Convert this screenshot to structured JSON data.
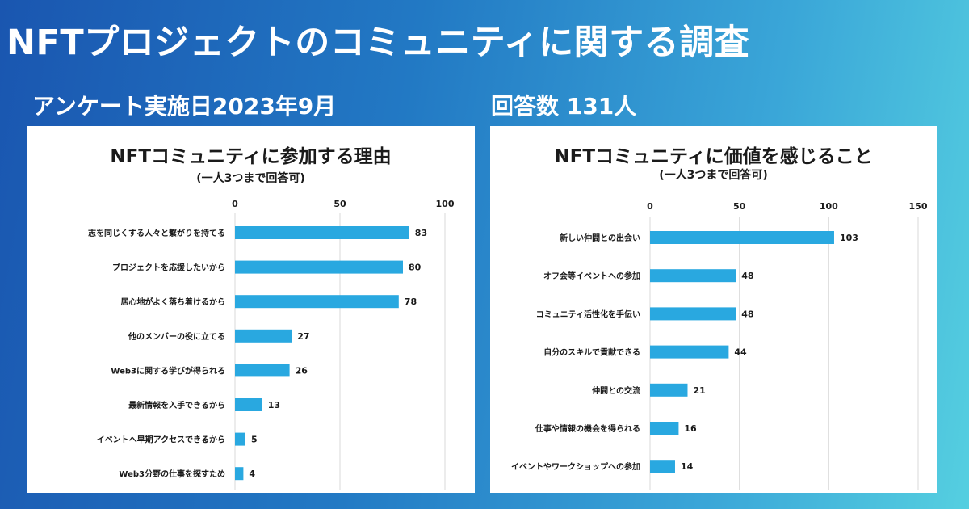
{
  "header": {
    "title": "NFTプロジェクトのコミュニティに関する調査",
    "survey_date": "アンケート実施日2023年9月",
    "respondents": "回答数 131人"
  },
  "colors": {
    "bar": "#29a8e0",
    "grid": "#d9d9d9",
    "text": "#1a1a1a"
  },
  "chart_data": [
    {
      "type": "bar",
      "orientation": "horizontal",
      "title": "NFTコミュニティに参加する理由",
      "note": "(一人3つまで回答可)",
      "xlim": [
        0,
        100
      ],
      "ticks": [
        0,
        50,
        100
      ],
      "categories": [
        "志を同じくする人々と繋がりを持てる",
        "プロジェクトを応援したいから",
        "居心地がよく落ち着けるから",
        "他のメンバーの役に立てる",
        "Web3に関する学びが得られる",
        "最新情報を入手できるから",
        "イベントへ早期アクセスできるから",
        "Web3分野の仕事を探すため"
      ],
      "values": [
        83,
        80,
        78,
        27,
        26,
        13,
        5,
        4
      ]
    },
    {
      "type": "bar",
      "orientation": "horizontal",
      "title": "NFTコミュニティに価値を感じること",
      "note": "(一人3つまで回答可)",
      "xlim": [
        0,
        150
      ],
      "ticks": [
        0,
        50,
        100,
        150
      ],
      "categories": [
        "新しい仲間との出会い",
        "オフ会等イベントへの参加",
        "コミュニティ活性化を手伝い",
        "自分のスキルで貢献できる",
        "仲間との交流",
        "仕事や情報の機会を得られる",
        "イベントやワークショップへの参加"
      ],
      "values": [
        103,
        48,
        48,
        44,
        21,
        16,
        14
      ]
    }
  ]
}
